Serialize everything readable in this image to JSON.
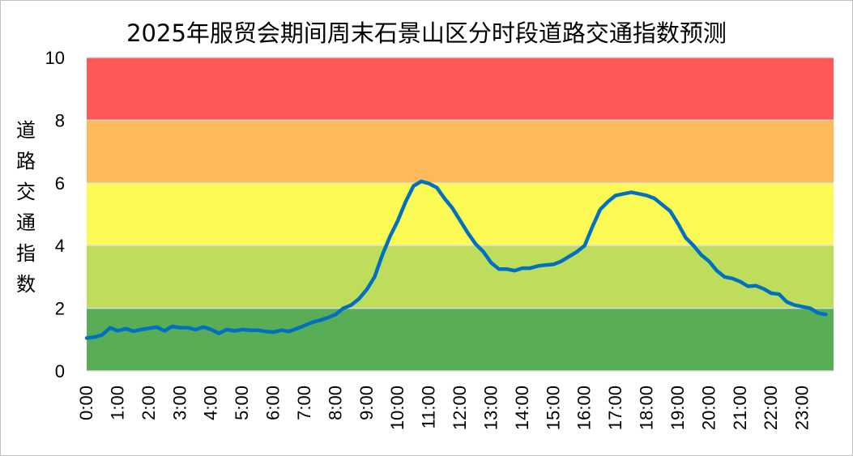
{
  "chart_data": {
    "type": "line",
    "title": "2025年服贸会期间周末石景山区分时段道路交通指数预测",
    "ylabel": "道路交通指数",
    "xlabel": "",
    "ylim": [
      0,
      10
    ],
    "yticks": [
      "0",
      "2",
      "4",
      "6",
      "8",
      "10"
    ],
    "xticks": [
      "0:00",
      "1:00",
      "2:00",
      "3:00",
      "4:00",
      "5:00",
      "6:00",
      "7:00",
      "8:00",
      "9:00",
      "10:00",
      "11:00",
      "12:00",
      "13:00",
      "14:00",
      "15:00",
      "16:00",
      "17:00",
      "18:00",
      "19:00",
      "20:00",
      "21:00",
      "22:00",
      "23:00"
    ],
    "bands": [
      {
        "from": 0,
        "to": 2,
        "color": "#5aad57"
      },
      {
        "from": 2,
        "to": 4,
        "color": "#bedd5c"
      },
      {
        "from": 4,
        "to": 6,
        "color": "#fcfa55"
      },
      {
        "from": 6,
        "to": 8,
        "color": "#feb95a"
      },
      {
        "from": 8,
        "to": 10,
        "color": "#fe5757"
      }
    ],
    "series": [
      {
        "color": "#0070c0",
        "x_step_hours": 0.25,
        "values": [
          1.05,
          1.08,
          1.15,
          1.38,
          1.28,
          1.35,
          1.27,
          1.32,
          1.36,
          1.4,
          1.28,
          1.42,
          1.38,
          1.38,
          1.32,
          1.4,
          1.32,
          1.2,
          1.32,
          1.28,
          1.32,
          1.3,
          1.3,
          1.26,
          1.24,
          1.3,
          1.26,
          1.35,
          1.45,
          1.55,
          1.62,
          1.7,
          1.8,
          2.0,
          2.1,
          2.3,
          2.6,
          3.0,
          3.7,
          4.3,
          4.8,
          5.4,
          5.9,
          6.05,
          5.98,
          5.85,
          5.5,
          5.2,
          4.8,
          4.4,
          4.05,
          3.8,
          3.45,
          3.25,
          3.25,
          3.2,
          3.28,
          3.28,
          3.35,
          3.38,
          3.4,
          3.5,
          3.65,
          3.8,
          4.0,
          4.6,
          5.15,
          5.4,
          5.6,
          5.65,
          5.7,
          5.65,
          5.6,
          5.5,
          5.3,
          5.1,
          4.7,
          4.25,
          4.0,
          3.7,
          3.5,
          3.2,
          3.0,
          2.95,
          2.85,
          2.7,
          2.72,
          2.62,
          2.48,
          2.45,
          2.2,
          2.1,
          2.05,
          2.0,
          1.85,
          1.8
        ]
      }
    ]
  }
}
